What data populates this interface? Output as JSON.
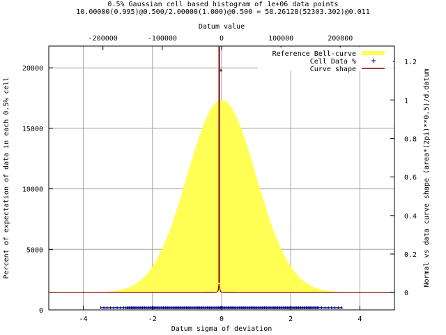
{
  "chart_data": {
    "type": "area",
    "title_line1": "0.5% Gaussian cell based histogram of 1e+06 data points",
    "title_line2": "10.00000(0.995)@0.500/2.00000(1.000)@0.500 = 58.26128(52303.302)@0.011",
    "xlabel": "Datum sigma of deviation",
    "x2label": "Datum value",
    "ylabel": "Percent of expectation of data in each 0.5% cell",
    "y2label": "Normal vs data curve shape (area*(2pi)**0.5)/d.datum",
    "xlim": [
      -5,
      5
    ],
    "ylim": [
      0,
      21800
    ],
    "x2lim": [
      -291306,
      291306
    ],
    "y2lim": [
      -0.09,
      1.28
    ],
    "x_ticks": [
      -4,
      -2,
      0,
      2,
      4
    ],
    "x_tick_labels": [
      "-4",
      "-2",
      "0",
      "2",
      "4"
    ],
    "y_ticks": [
      0,
      5000,
      10000,
      15000,
      20000
    ],
    "y_tick_labels": [
      "0",
      "5000",
      "10000",
      "15000",
      "20000"
    ],
    "x2_ticks": [
      -200000,
      -100000,
      0,
      100000,
      200000
    ],
    "x2_tick_labels": [
      "-200000",
      "-100000",
      "0",
      "100000",
      "200000"
    ],
    "y2_ticks": [
      0,
      0.2,
      0.4,
      0.6,
      0.8,
      1.0,
      1.2
    ],
    "y2_tick_labels": [
      "0",
      "0.2",
      "0.4",
      "0.6",
      "0.8",
      "1",
      "1.2"
    ],
    "grid": true,
    "legend_position": "top-right",
    "legend": [
      {
        "label": "Reference Bell-curve",
        "color": "#ffff55"
      },
      {
        "label": "Cell Data %",
        "color": "#000080"
      },
      {
        "label": "Curve shape",
        "color": "#800000"
      }
    ],
    "series": [
      {
        "name": "Reference Bell-curve",
        "kind": "gaussian",
        "mean": 0,
        "sigma": 1,
        "peak_y2": 1.0,
        "color": "#ffff55"
      },
      {
        "name": "Cell Data %",
        "kind": "points",
        "x": [
          -0.02,
          -0.02
        ],
        "y": [
          19800,
          200
        ],
        "color": "#000080"
      },
      {
        "name": "Curve shape",
        "kind": "spike",
        "center": -0.07,
        "width": 0.015,
        "peak_y2": 1.28,
        "base_y2": 0,
        "color": "#800000"
      }
    ]
  }
}
